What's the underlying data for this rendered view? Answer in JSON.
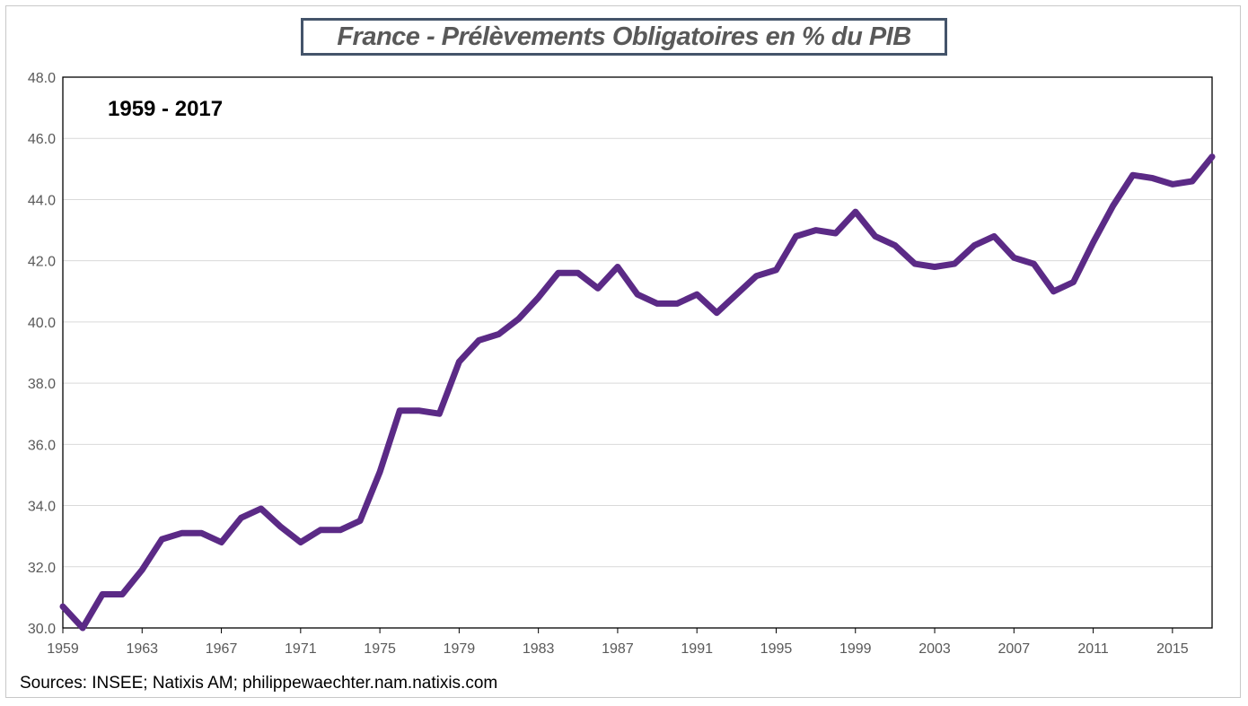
{
  "chart_data": {
    "type": "line",
    "title": "France - Prélèvements Obligatoires en % du PIB",
    "annotation": "1959 - 2017",
    "source": "Sources: INSEE; Natixis AM; philippewaechter.nam.natixis.com",
    "xlabel": "",
    "ylabel": "",
    "xlim": [
      1959,
      2017
    ],
    "ylim": [
      30.0,
      48.0
    ],
    "ytick_step": 2,
    "x_ticks": [
      1959,
      1963,
      1967,
      1971,
      1975,
      1979,
      1983,
      1987,
      1991,
      1995,
      1999,
      2003,
      2007,
      2011,
      2015
    ],
    "y_ticks": [
      "30.0",
      "32.0",
      "34.0",
      "36.0",
      "38.0",
      "40.0",
      "42.0",
      "44.0",
      "46.0",
      "48.0"
    ],
    "grid": true,
    "line_color": "#5b2a86",
    "series": [
      {
        "x": [
          1959,
          1960,
          1961,
          1962,
          1963,
          1964,
          1965,
          1966,
          1967,
          1968,
          1969,
          1970,
          1971,
          1972,
          1973,
          1974,
          1975,
          1976,
          1977,
          1978,
          1979,
          1980,
          1981,
          1982,
          1983,
          1984,
          1985,
          1986,
          1987,
          1988,
          1989,
          1990,
          1991,
          1992,
          1993,
          1994,
          1995,
          1996,
          1997,
          1998,
          1999,
          2000,
          2001,
          2002,
          2003,
          2004,
          2005,
          2006,
          2007,
          2008,
          2009,
          2010,
          2011,
          2012,
          2013,
          2014,
          2015,
          2016,
          2017
        ],
        "values": [
          30.7,
          30.0,
          31.1,
          31.1,
          31.9,
          32.9,
          33.1,
          33.1,
          32.8,
          33.6,
          33.9,
          33.3,
          32.8,
          33.2,
          33.2,
          33.5,
          35.1,
          37.1,
          37.1,
          37.0,
          38.7,
          39.4,
          39.6,
          40.1,
          40.8,
          41.6,
          41.6,
          41.1,
          41.8,
          40.9,
          40.6,
          40.6,
          40.9,
          40.3,
          40.9,
          41.5,
          41.7,
          42.8,
          43.0,
          42.9,
          43.6,
          42.8,
          42.5,
          41.9,
          41.8,
          41.9,
          42.5,
          42.8,
          42.1,
          41.9,
          41.0,
          41.3,
          42.6,
          43.8,
          44.8,
          44.7,
          44.5,
          44.6,
          45.4
        ]
      }
    ]
  }
}
